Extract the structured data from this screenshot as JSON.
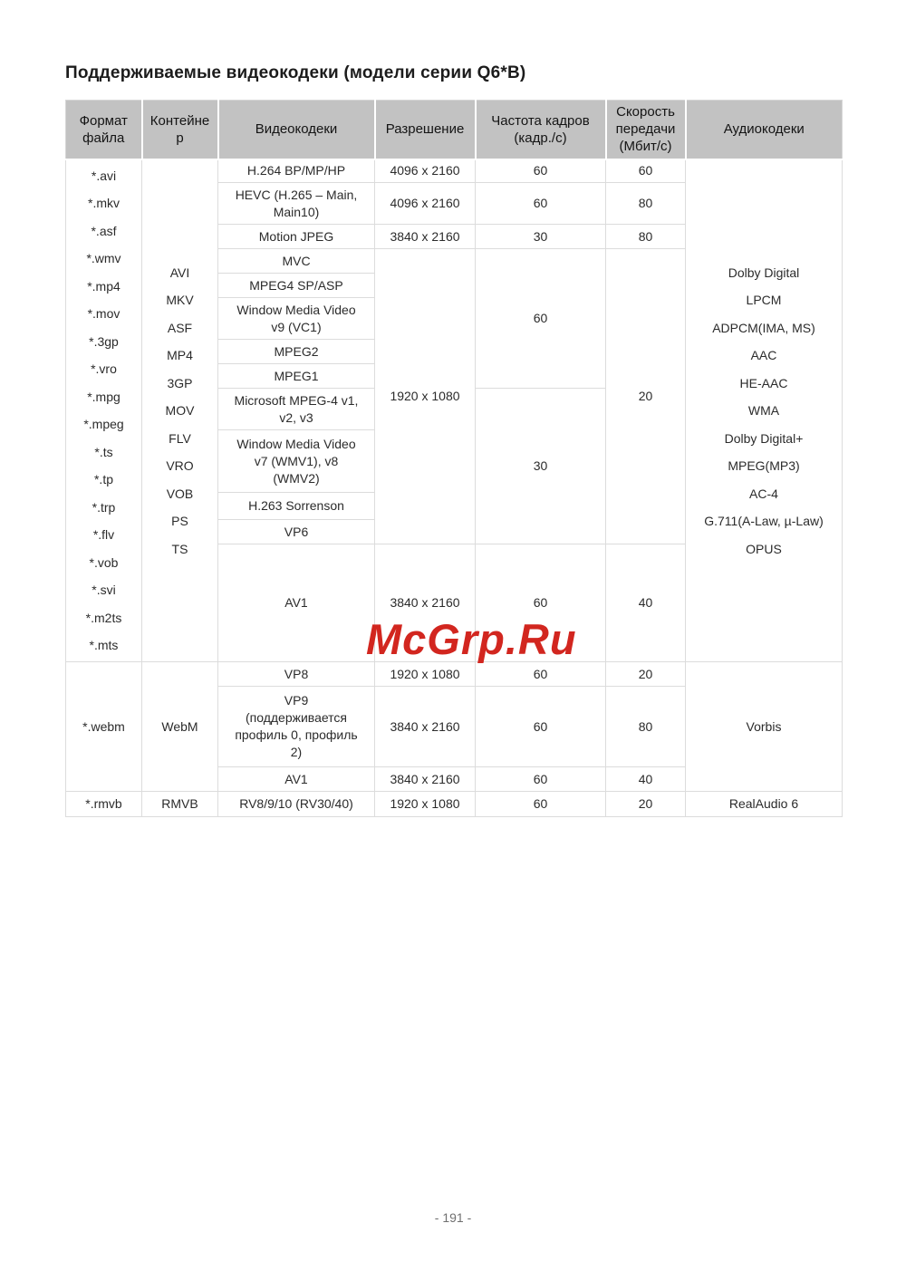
{
  "page": {
    "title": "Поддерживаемые видеокодеки (модели серии Q6*B)",
    "watermark": "McGrp.Ru",
    "page_number": "- 191 -"
  },
  "colors": {
    "watermark_red": "#d2261f",
    "header_bg": "#c2c2c2",
    "border_gray": "#dcdcdc",
    "text": "#2b2b2b"
  },
  "table": {
    "headers": [
      "Формат файла",
      "Контейнер",
      "Видеокодеки",
      "Разрешение",
      "Частота кадров (кадр./с)",
      "Скорость передачи (Мбит/с)",
      "Аудиокодеки"
    ],
    "s1": {
      "formats": [
        "*.avi",
        "*.mkv",
        "*.asf",
        "*.wmv",
        "*.mp4",
        "*.mov",
        "*.3gp",
        "*.vro",
        "*.mpg",
        "*.mpeg",
        "*.ts",
        "*.tp",
        "*.trp",
        "*.flv",
        "*.vob",
        "*.svi",
        "*.m2ts",
        "*.mts"
      ],
      "containers": [
        "AVI",
        "MKV",
        "ASF",
        "MP4",
        "3GP",
        "MOV",
        "FLV",
        "VRO",
        "VOB",
        "PS",
        "TS"
      ],
      "audio": [
        "Dolby Digital",
        "LPCM",
        "ADPCM(IMA, MS)",
        "AAC",
        "HE-AAC",
        "WMA",
        "Dolby Digital+",
        "MPEG(MP3)",
        "AC-4",
        "G.711(A-Law, µ-Law)",
        "OPUS"
      ],
      "rows": [
        {
          "codec": "H.264 BP/MP/HP",
          "res": "4096 x 2160",
          "fps": "60",
          "rate": "60"
        },
        {
          "codec": "HEVC (H.265 – Main,\nMain10)",
          "res": "4096 x 2160",
          "fps": "60",
          "rate": "80"
        },
        {
          "codec": "Motion JPEG",
          "res": "3840 x 2160",
          "fps": "30",
          "rate": "80"
        },
        {
          "codec": "MVC"
        },
        {
          "codec": "MPEG4 SP/ASP"
        },
        {
          "codec": "Window Media Video\nv9 (VC1)"
        },
        {
          "codec": "MPEG2"
        },
        {
          "codec": "MPEG1"
        },
        {
          "codec": "Microsoft MPEG-4 v1,\nv2, v3"
        },
        {
          "codec": "Window Media Video\nv7 (WMV1), v8\n(WMV2)"
        },
        {
          "codec": "H.263 Sorrenson"
        },
        {
          "codec": "VP6"
        },
        {
          "codec": "AV1",
          "res": "3840 x 2160",
          "fps": "60",
          "rate": "40"
        }
      ],
      "shared": {
        "res": "1920 x 1080",
        "fps_top": "60",
        "fps_bottom": "30",
        "rate": "20"
      }
    },
    "s2": {
      "format": "*.webm",
      "container": "WebM",
      "audio": "Vorbis",
      "rows": [
        {
          "codec": "VP8",
          "res": "1920 x 1080",
          "fps": "60",
          "rate": "20"
        },
        {
          "codec": "VP9\n(поддерживается\nпрофиль 0, профиль\n2)",
          "res": "3840 x 2160",
          "fps": "60",
          "rate": "80"
        },
        {
          "codec": "AV1",
          "res": "3840 x 2160",
          "fps": "60",
          "rate": "40"
        }
      ]
    },
    "s3": {
      "format": "*.rmvb",
      "container": "RMVB",
      "codec": "RV8/9/10 (RV30/40)",
      "res": "1920 x 1080",
      "fps": "60",
      "rate": "20",
      "audio": "RealAudio 6"
    }
  }
}
